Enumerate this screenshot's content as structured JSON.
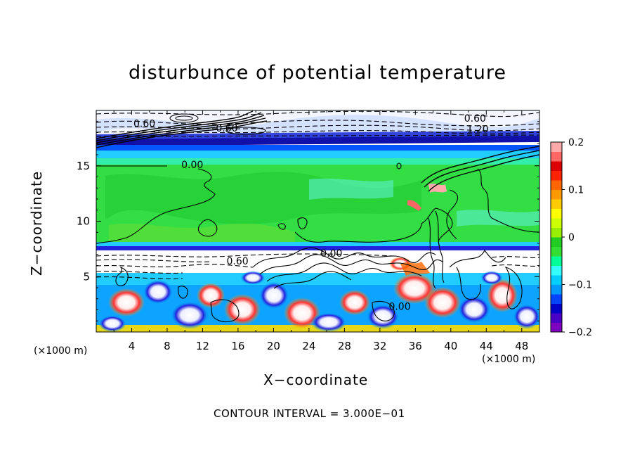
{
  "chart_data": {
    "type": "heatmap",
    "title": "disturbunce of potential temperature",
    "xlabel": "X−coordinate",
    "ylabel": "Z−coordinate",
    "x_unit_label_left": "(×1000 m)",
    "x_unit_label_right": "(×1000 m)",
    "xlim": [
      0,
      50
    ],
    "ylim": [
      0,
      20
    ],
    "x_ticks": [
      4,
      8,
      12,
      16,
      20,
      24,
      28,
      32,
      36,
      40,
      44,
      48
    ],
    "y_ticks": [
      5,
      10,
      15
    ],
    "colorbar": {
      "range": [
        -0.2,
        0.2
      ],
      "tick_labels": [
        "0.2",
        "0.1",
        "0",
        "−0.1",
        "−0.2"
      ],
      "tick_values": [
        0.2,
        0.1,
        0,
        -0.1,
        -0.2
      ],
      "colors": [
        "#7f00bf",
        "#4b00c8",
        "#0000c8",
        "#0044ff",
        "#0099ff",
        "#00ccff",
        "#33ffff",
        "#00ff99",
        "#33dd33",
        "#22cc22",
        "#99ee00",
        "#ccff00",
        "#ffff00",
        "#ffcc00",
        "#ff9900",
        "#ff6600",
        "#ff2200",
        "#dd0000",
        "#ff6666",
        "#ffaaaa"
      ]
    },
    "contour_labels": [
      {
        "text": "0.60",
        "x": 4.2,
        "z": 18.5
      },
      {
        "text": "0.60",
        "x": 13.5,
        "z": 18.1
      },
      {
        "text": "0.60",
        "x": 41.5,
        "z": 19.0
      },
      {
        "text": "1.20",
        "x": 41.8,
        "z": 18.0
      },
      {
        "text": "0.00",
        "x": 9.6,
        "z": 14.8
      },
      {
        "text": "0.60",
        "x": 14.7,
        "z": 6.1
      },
      {
        "text": "0.00",
        "x": 25.3,
        "z": 6.8
      },
      {
        "text": "0.00",
        "x": 33.0,
        "z": 2.0
      }
    ],
    "grid": false,
    "legend": "right"
  },
  "footer": {
    "contour_interval": "CONTOUR INTERVAL = 3.000E−01"
  }
}
